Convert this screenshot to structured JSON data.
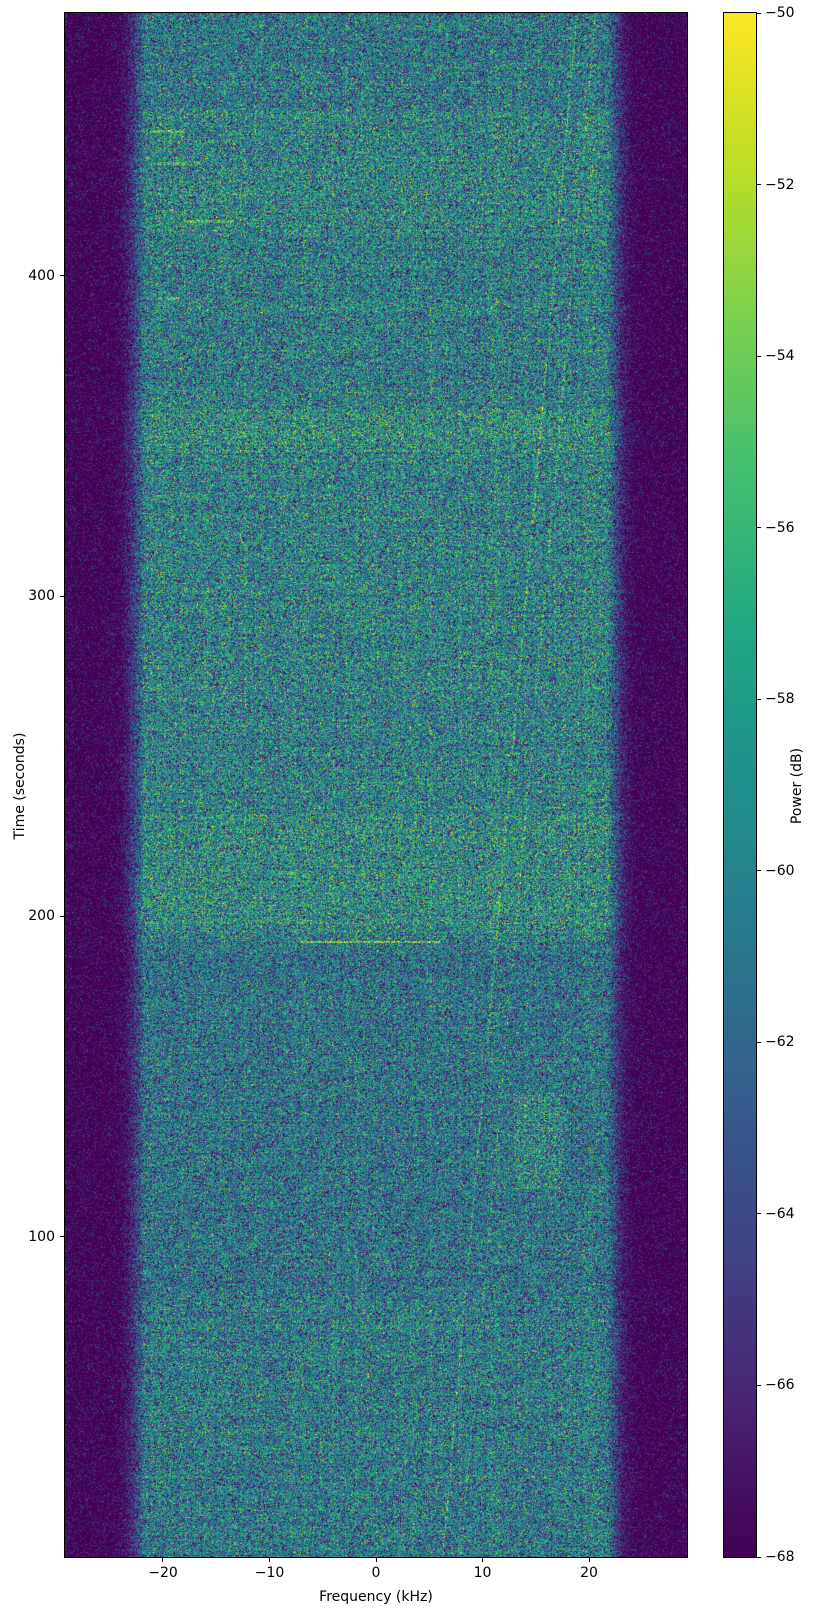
{
  "figure": {
    "background": "#ffffff",
    "spine_color": "#000000",
    "tick_color": "#000000",
    "text_color": "#000000"
  },
  "chart_data": {
    "type": "heatmap",
    "subtype": "spectrogram-waterfall",
    "title": "",
    "xlabel": "Frequency (kHz)",
    "ylabel": "Time (seconds)",
    "colorbar_label": "Power (dB)",
    "xlim": [
      -29.2,
      29.2
    ],
    "ylim": [
      0,
      482
    ],
    "clim": [
      -68,
      -50
    ],
    "grid": false,
    "colormap": "viridis",
    "colormap_stops": [
      [
        0.0,
        [
          68,
          1,
          84
        ]
      ],
      [
        0.1,
        [
          72,
          36,
          117
        ]
      ],
      [
        0.2,
        [
          64,
          67,
          135
        ]
      ],
      [
        0.3,
        [
          52,
          94,
          141
        ]
      ],
      [
        0.4,
        [
          41,
          120,
          142
        ]
      ],
      [
        0.5,
        [
          32,
          144,
          140
        ]
      ],
      [
        0.6,
        [
          34,
          167,
          132
        ]
      ],
      [
        0.7,
        [
          66,
          190,
          113
        ]
      ],
      [
        0.8,
        [
          121,
          209,
          81
        ]
      ],
      [
        0.9,
        [
          189,
          222,
          38
        ]
      ],
      [
        1.0,
        [
          253,
          231,
          37
        ]
      ]
    ],
    "xticks": [
      {
        "value": -20,
        "label": "−20"
      },
      {
        "value": -10,
        "label": "−10"
      },
      {
        "value": 0,
        "label": "0"
      },
      {
        "value": 10,
        "label": "10"
      },
      {
        "value": 20,
        "label": "20"
      }
    ],
    "yticks": [
      {
        "value": 100,
        "label": "100"
      },
      {
        "value": 200,
        "label": "200"
      },
      {
        "value": 300,
        "label": "300"
      },
      {
        "value": 400,
        "label": "400"
      }
    ],
    "colorbar_ticks": [
      {
        "value": -50,
        "label": "−50"
      },
      {
        "value": -52,
        "label": "−52"
      },
      {
        "value": -54,
        "label": "−54"
      },
      {
        "value": -56,
        "label": "−56"
      },
      {
        "value": -58,
        "label": "−58"
      },
      {
        "value": -60,
        "label": "−60"
      },
      {
        "value": -62,
        "label": "−62"
      },
      {
        "value": -64,
        "label": "−64"
      },
      {
        "value": -66,
        "label": "−66"
      },
      {
        "value": -68,
        "label": "−68"
      }
    ],
    "spectrogram": {
      "description": "Wideband noise-like signal occupying roughly ±24 kHz around center, shown over ~0–482 s; dark (−68 dB) noise floor outside the occupied band, in-band level near −60 dB with speckle.",
      "occupied_band_khz": [
        -24,
        24
      ],
      "edge_rolloff_start_khz": 21.8,
      "edge_rolloff_db_per_khz": 7,
      "in_band_mean_db": -59.4,
      "noise_floor_db": -68.35,
      "row_jitter_db": 0.8,
      "col_jitter_db": 0.8,
      "time_bands": [
        {
          "t": [
            0,
            80
          ],
          "delta_db": -0.3
        },
        {
          "t": [
            80,
            190
          ],
          "delta_db": -0.8
        },
        {
          "t": [
            196,
            232
          ],
          "delta_db": 1.2
        },
        {
          "t": [
            232,
            345
          ],
          "delta_db": 0.4
        },
        {
          "t": [
            345,
            358
          ],
          "delta_db": 1.4
        },
        {
          "t": [
            412,
            452
          ],
          "delta_db": 0.6
        },
        {
          "t": [
            452,
            482
          ],
          "delta_db": -0.4
        }
      ],
      "events": [
        {
          "type": "line",
          "t": 192,
          "f_khz": [
            -7,
            6
          ],
          "power_db": -53
        },
        {
          "type": "dash",
          "t": 445,
          "f_khz": [
            -21.2,
            -18
          ],
          "power_db": -54
        },
        {
          "type": "dash",
          "t": 435,
          "f_khz": [
            -20.8,
            -16.5
          ],
          "power_db": -55
        },
        {
          "type": "dash",
          "t": 417,
          "f_khz": [
            -18,
            -13.3
          ],
          "power_db": -55
        },
        {
          "type": "dash",
          "t": 393,
          "f_khz": [
            -20.5,
            -18.5
          ],
          "power_db": -55
        },
        {
          "type": "blob",
          "t": [
            115,
            145
          ],
          "f_khz": [
            13,
            17.5
          ],
          "delta_db": 1.8
        }
      ],
      "drifting_carriers": [
        {
          "f_start_khz": 6.2,
          "f_end_khz": 18.8,
          "delta_db": 3.5
        },
        {
          "f_start_khz": 7.9,
          "f_end_khz": 20.6,
          "delta_db": 2.5
        }
      ]
    }
  }
}
